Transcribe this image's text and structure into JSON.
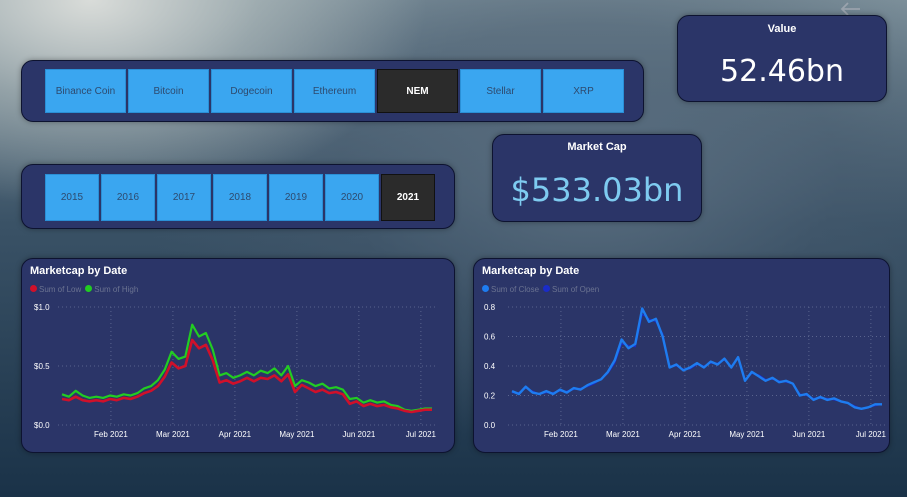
{
  "crypto_slicer": {
    "items": [
      "Binance Coin",
      "Bitcoin",
      "Dogecoin",
      "Ethereum",
      "NEM",
      "Stellar",
      "XRP"
    ],
    "selected": "NEM"
  },
  "year_slicer": {
    "items": [
      "2015",
      "2016",
      "2017",
      "2018",
      "2019",
      "2020",
      "2021"
    ],
    "selected": "2021"
  },
  "value_card": {
    "title": "Value",
    "value": "52.46bn"
  },
  "marketcap_card": {
    "title": "Market Cap",
    "value": "$533.03bn"
  },
  "icons": {
    "back": "back-arrow-icon"
  },
  "colors": {
    "slicer": "#3aa6f0",
    "selected": "#2b2b2b",
    "panel": "#2b3568",
    "low": "#d0102a",
    "high": "#22cc22",
    "close": "#1e7cf0",
    "open": "#1a2cc8",
    "marketcap_value": "#7ecbf0"
  },
  "chart_data": [
    {
      "type": "line",
      "title": "Marketcap by Date",
      "xlabel": "",
      "ylabel": "",
      "x_ticks": [
        "Feb 2021",
        "Mar 2021",
        "Apr 2021",
        "May 2021",
        "Jun 2021",
        "Jul 2021"
      ],
      "y_ticks": [
        "$0.0",
        "$0.5",
        "$1.0"
      ],
      "ylim": [
        0,
        1.0
      ],
      "grid": true,
      "legend": "top-left",
      "series": [
        {
          "name": "Sum of Low",
          "color": "#d0102a",
          "values": [
            0.22,
            0.21,
            0.24,
            0.21,
            0.2,
            0.21,
            0.2,
            0.22,
            0.21,
            0.23,
            0.22,
            0.24,
            0.27,
            0.29,
            0.33,
            0.41,
            0.53,
            0.48,
            0.5,
            0.72,
            0.65,
            0.68,
            0.55,
            0.36,
            0.38,
            0.35,
            0.37,
            0.4,
            0.37,
            0.4,
            0.39,
            0.42,
            0.37,
            0.43,
            0.28,
            0.34,
            0.31,
            0.28,
            0.3,
            0.27,
            0.28,
            0.26,
            0.18,
            0.2,
            0.16,
            0.18,
            0.16,
            0.17,
            0.15,
            0.14,
            0.12,
            0.11,
            0.12,
            0.13,
            0.13
          ]
        },
        {
          "name": "Sum of High",
          "color": "#22cc22",
          "values": [
            0.26,
            0.24,
            0.29,
            0.25,
            0.23,
            0.24,
            0.23,
            0.25,
            0.24,
            0.26,
            0.25,
            0.27,
            0.31,
            0.33,
            0.38,
            0.47,
            0.62,
            0.56,
            0.58,
            0.85,
            0.75,
            0.78,
            0.64,
            0.42,
            0.44,
            0.4,
            0.42,
            0.45,
            0.42,
            0.46,
            0.44,
            0.48,
            0.42,
            0.5,
            0.33,
            0.38,
            0.36,
            0.33,
            0.35,
            0.31,
            0.32,
            0.3,
            0.22,
            0.23,
            0.19,
            0.21,
            0.19,
            0.2,
            0.17,
            0.16,
            0.13,
            0.12,
            0.13,
            0.14,
            0.14
          ]
        }
      ]
    },
    {
      "type": "line",
      "title": "Marketcap by Date",
      "xlabel": "",
      "ylabel": "",
      "x_ticks": [
        "Feb 2021",
        "Mar 2021",
        "Apr 2021",
        "May 2021",
        "Jun 2021",
        "Jul 2021"
      ],
      "y_ticks": [
        "0.0",
        "0.2",
        "0.4",
        "0.6",
        "0.8"
      ],
      "ylim": [
        0,
        0.8
      ],
      "grid": true,
      "legend": "top-left",
      "series": [
        {
          "name": "Sum of Close",
          "color": "#1e7cf0",
          "values": [
            0.23,
            0.21,
            0.26,
            0.22,
            0.21,
            0.23,
            0.21,
            0.24,
            0.22,
            0.25,
            0.24,
            0.27,
            0.29,
            0.31,
            0.36,
            0.44,
            0.58,
            0.52,
            0.55,
            0.79,
            0.7,
            0.72,
            0.6,
            0.39,
            0.41,
            0.37,
            0.39,
            0.42,
            0.39,
            0.43,
            0.41,
            0.45,
            0.39,
            0.46,
            0.3,
            0.36,
            0.33,
            0.3,
            0.32,
            0.29,
            0.3,
            0.28,
            0.2,
            0.21,
            0.17,
            0.19,
            0.17,
            0.18,
            0.16,
            0.15,
            0.12,
            0.11,
            0.12,
            0.14,
            0.14
          ]
        },
        {
          "name": "Sum of Open",
          "color": "#1a2cc8",
          "values": [
            0.22,
            0.22,
            0.25,
            0.23,
            0.21,
            0.22,
            0.22,
            0.23,
            0.23,
            0.24,
            0.25,
            0.26,
            0.28,
            0.31,
            0.35,
            0.42,
            0.55,
            0.54,
            0.53,
            0.75,
            0.72,
            0.7,
            0.62,
            0.4,
            0.4,
            0.38,
            0.38,
            0.41,
            0.4,
            0.42,
            0.42,
            0.44,
            0.4,
            0.45,
            0.31,
            0.35,
            0.34,
            0.31,
            0.31,
            0.3,
            0.29,
            0.28,
            0.21,
            0.2,
            0.18,
            0.18,
            0.18,
            0.17,
            0.16,
            0.15,
            0.13,
            0.11,
            0.12,
            0.13,
            0.14
          ]
        }
      ]
    }
  ]
}
